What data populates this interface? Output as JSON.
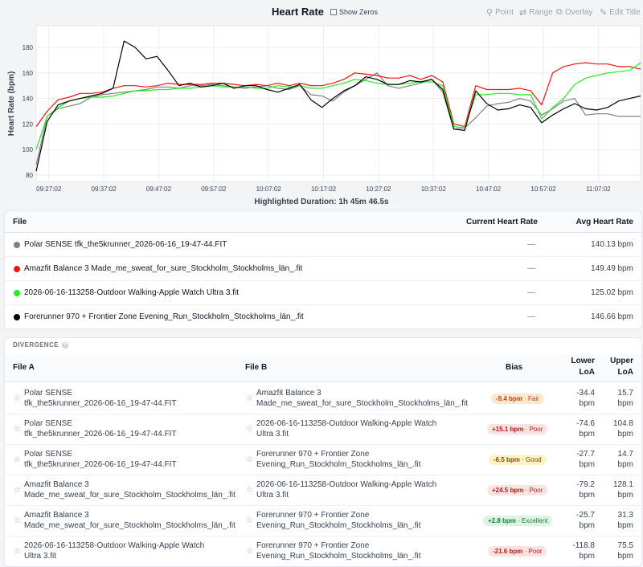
{
  "header": {
    "title": "Heart Rate",
    "show_zeros_label": "Show Zeros",
    "tools": [
      {
        "label": "Point",
        "icon": "pin-icon"
      },
      {
        "label": "Range",
        "icon": "range-arrows-icon"
      },
      {
        "label": "Overlay",
        "icon": "overlay-icon"
      },
      {
        "label": "Edit Title",
        "icon": "edit-icon"
      }
    ]
  },
  "chart_data": {
    "type": "line",
    "title": "",
    "ylabel": "Heart Rate (bpm)",
    "ylim": [
      75,
      197
    ],
    "yticks": [
      80,
      100,
      120,
      140,
      160,
      180
    ],
    "xticks": [
      "09:27:02",
      "09:37:02",
      "09:47:02",
      "09:57:02",
      "10:07:02",
      "10:17:02",
      "10:27:02",
      "10:37:02",
      "10:47:02",
      "10:57:02",
      "11:07:02"
    ],
    "x_minutes": [
      0,
      2,
      4,
      6,
      8,
      10,
      12,
      14,
      16,
      18,
      20,
      22,
      24,
      26,
      28,
      30,
      32,
      34,
      36,
      38,
      40,
      42,
      44,
      46,
      48,
      50,
      52,
      54,
      56,
      58,
      60,
      62,
      64,
      66,
      68,
      70,
      72,
      74,
      76,
      78,
      80,
      82,
      84,
      86,
      88,
      90,
      92,
      94,
      96,
      98,
      100,
      102,
      104,
      106,
      108,
      110
    ],
    "series": [
      {
        "color": "#808080",
        "values": [
          88,
          126,
          132,
          134,
          136,
          141,
          143,
          144,
          145,
          146,
          147,
          149,
          149,
          148,
          150,
          150,
          151,
          150,
          149,
          148,
          149,
          150,
          148,
          147,
          150,
          143,
          142,
          138,
          145,
          150,
          155,
          160,
          150,
          148,
          150,
          152,
          155,
          145,
          116,
          117,
          125,
          134,
          136,
          137,
          140,
          138,
          127,
          132,
          138,
          140,
          127,
          128,
          128,
          126,
          126,
          126
        ]
      },
      {
        "color": "#ff1010",
        "values": [
          118,
          130,
          139,
          141,
          144,
          144,
          145,
          148,
          150,
          150,
          149,
          150,
          152,
          151,
          151,
          151,
          152,
          152,
          151,
          150,
          151,
          150,
          152,
          150,
          152,
          150,
          150,
          152,
          155,
          160,
          159,
          158,
          156,
          156,
          158,
          155,
          158,
          153,
          120,
          118,
          150,
          147,
          147,
          147,
          148,
          146,
          135,
          160,
          165,
          167,
          168,
          167,
          167,
          165,
          165,
          163
        ]
      },
      {
        "color": "#22ee22",
        "values": [
          100,
          126,
          133,
          138,
          140,
          141,
          141,
          142,
          144,
          146,
          146,
          147,
          147,
          148,
          148,
          149,
          150,
          149,
          149,
          149,
          148,
          148,
          150,
          149,
          150,
          148,
          148,
          150,
          152,
          155,
          154,
          152,
          151,
          151,
          152,
          153,
          153,
          150,
          118,
          117,
          143,
          143,
          144,
          144,
          143,
          143,
          124,
          133,
          140,
          151,
          156,
          158,
          160,
          161,
          162,
          168
        ]
      },
      {
        "color": "#000000",
        "values": [
          83,
          122,
          135,
          138,
          140,
          142,
          144,
          148,
          185,
          180,
          171,
          173,
          162,
          150,
          152,
          149,
          150,
          152,
          148,
          150,
          150,
          147,
          145,
          148,
          151,
          139,
          133,
          140,
          146,
          150,
          157,
          155,
          151,
          151,
          154,
          153,
          155,
          147,
          116,
          115,
          146,
          136,
          131,
          132,
          135,
          133,
          121,
          127,
          132,
          136,
          132,
          131,
          133,
          138,
          140,
          142
        ]
      }
    ]
  },
  "highlighted_duration": "Highlighted Duration: 1h 45m 46.5s",
  "files_table": {
    "columns": [
      "File",
      "Current Heart Rate",
      "Avg Heart Rate"
    ],
    "rows": [
      {
        "color": "#808080",
        "name": "Polar SENSE tfk_the5krunner_2026-06-16_19-47-44.FIT",
        "current": "—",
        "avg": "140.13 bpm"
      },
      {
        "color": "#ff1010",
        "name": "Amazfit Balance 3 Made_me_sweat_for_sure_Stockholm_Stockholms_län_.fit",
        "current": "—",
        "avg": "149.49 bpm"
      },
      {
        "color": "#22ee22",
        "name": "2026-06-16-113258-Outdoor Walking-Apple Watch Ultra 3.fit",
        "current": "—",
        "avg": "125.02 bpm"
      },
      {
        "color": "#000000",
        "name": "Forerunner 970 + Frontier Zone Evening_Run_Stockholm_Stockholms_län_.fit",
        "current": "—",
        "avg": "146.66 bpm"
      }
    ]
  },
  "divergence": {
    "title": "DIVERGENCE",
    "help_icon": "help-icon",
    "columns": {
      "file_a": "File A",
      "file_b": "File B",
      "bias": "Bias",
      "lower_1": "Lower",
      "lower_2": "LoA",
      "upper_1": "Upper",
      "upper_2": "LoA"
    },
    "rows": [
      {
        "a1": "Polar SENSE",
        "a2": "tfk_the5krunner_2026-06-16_19-47-44.FIT",
        "b1": "Amazfit Balance 3",
        "b2": "Made_me_sweat_for_sure_Stockholm_Stockholms_län_.fit",
        "bias": "-9.4 bpm",
        "rating": " · Fair",
        "pill_bg": "#fde7cf",
        "pill_fg": "#c2410c",
        "lo1": "-34.4",
        "lo2": "bpm",
        "up1": "15.7",
        "up2": "bpm"
      },
      {
        "a1": "Polar SENSE",
        "a2": "tfk_the5krunner_2026-06-16_19-47-44.FIT",
        "b1": "2026-06-16-113258-Outdoor Walking-Apple Watch",
        "b2": "Ultra 3.fit",
        "bias": "+15.1 bpm",
        "rating": " · Poor",
        "pill_bg": "#fde2e2",
        "pill_fg": "#b91c1c",
        "lo1": "-74.6",
        "lo2": "bpm",
        "up1": "104.8",
        "up2": "bpm"
      },
      {
        "a1": "Polar SENSE",
        "a2": "tfk_the5krunner_2026-06-16_19-47-44.FIT",
        "b1": "Forerunner 970 + Frontier Zone",
        "b2": "Evening_Run_Stockholm_Stockholms_län_.fit",
        "bias": "-6.5 bpm",
        "rating": " · Good",
        "pill_bg": "#fdf3c4",
        "pill_fg": "#92400e",
        "lo1": "-27.7",
        "lo2": "bpm",
        "up1": "14.7",
        "up2": "bpm"
      },
      {
        "a1": "Amazfit Balance 3",
        "a2": "Made_me_sweat_for_sure_Stockholm_Stockholms_län_.fit",
        "b1": "2026-06-16-113258-Outdoor Walking-Apple Watch",
        "b2": "Ultra 3.fit",
        "bias": "+24.5 bpm",
        "rating": " · Poor",
        "pill_bg": "#fde2e2",
        "pill_fg": "#b91c1c",
        "lo1": "-79.2",
        "lo2": "bpm",
        "up1": "128.1",
        "up2": "bpm"
      },
      {
        "a1": "Amazfit Balance 3",
        "a2": "Made_me_sweat_for_sure_Stockholm_Stockholms_län_.fit",
        "b1": "Forerunner 970 + Frontier Zone",
        "b2": "Evening_Run_Stockholm_Stockholms_län_.fit",
        "bias": "+2.8 bpm",
        "rating": " · Excellent",
        "pill_bg": "#dcf5e3",
        "pill_fg": "#15803d",
        "lo1": "-25.7",
        "lo2": "bpm",
        "up1": "31.3",
        "up2": "bpm"
      },
      {
        "a1": "2026-06-16-113258-Outdoor Walking-Apple Watch",
        "a2": "Ultra 3.fit",
        "b1": "Forerunner 970 + Frontier Zone",
        "b2": "Evening_Run_Stockholm_Stockholms_län_.fit",
        "bias": "-21.6 bpm",
        "rating": " · Poor",
        "pill_bg": "#fde2e2",
        "pill_fg": "#b91c1c",
        "lo1": "-118.8",
        "lo2": "bpm",
        "up1": "75.5",
        "up2": "bpm"
      }
    ]
  }
}
